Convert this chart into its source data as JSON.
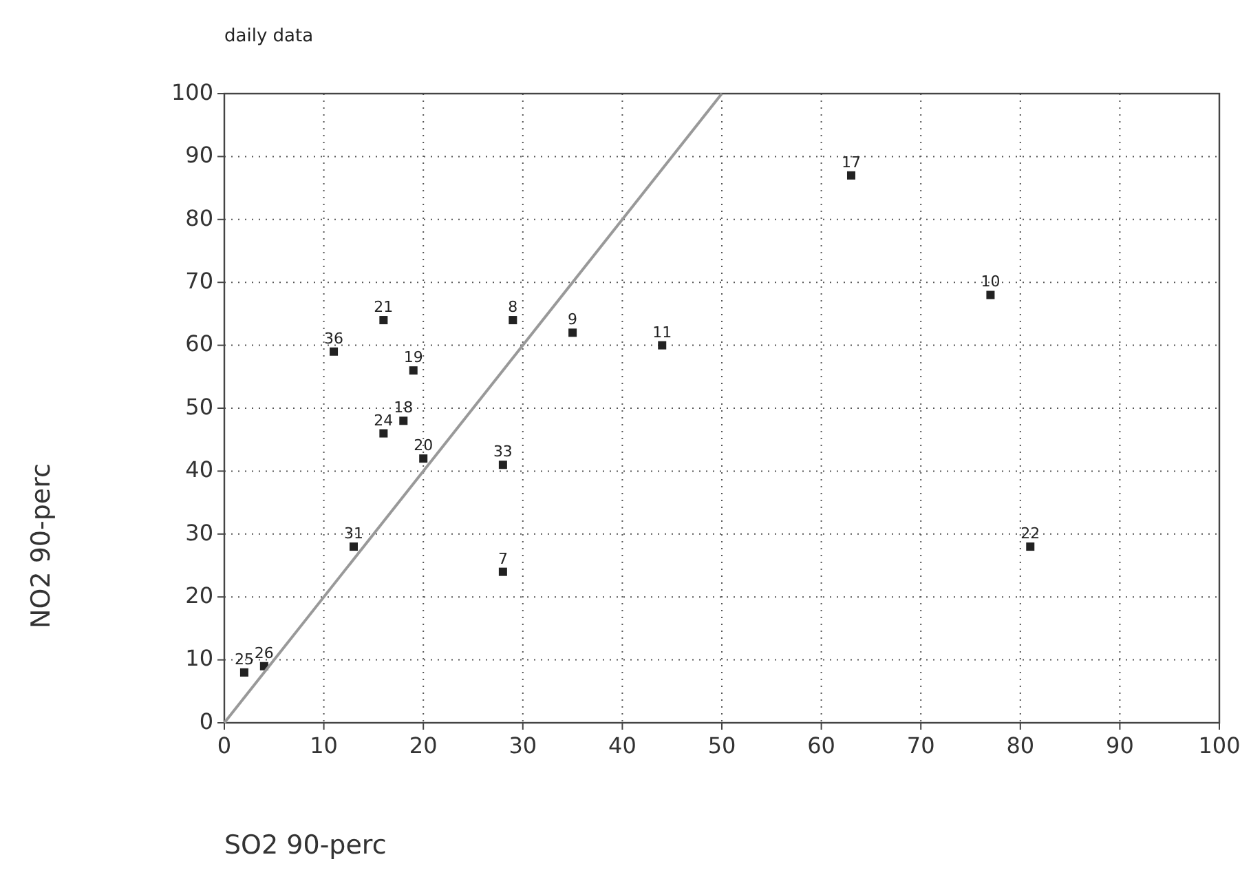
{
  "chart_data": {
    "type": "scatter",
    "title": "daily data",
    "xlabel": "SO2 90-perc",
    "ylabel": "NO2 90-perc",
    "xlim": [
      0,
      100
    ],
    "ylim": [
      0,
      100
    ],
    "xticks": [
      0,
      10,
      20,
      30,
      40,
      50,
      60,
      70,
      80,
      90,
      100
    ],
    "yticks": [
      0,
      10,
      20,
      30,
      40,
      50,
      60,
      70,
      80,
      90,
      100
    ],
    "grid": true,
    "marker": "square",
    "series": [
      {
        "type": "scatter",
        "color": "#222222",
        "x": [
          2,
          4,
          13,
          11,
          16,
          19,
          16,
          18,
          20,
          28,
          28,
          29,
          35,
          44,
          63,
          77,
          81
        ],
        "values": [
          8,
          9,
          28,
          59,
          64,
          56,
          46,
          48,
          42,
          41,
          24,
          64,
          62,
          60,
          87,
          68,
          28
        ]
      },
      {
        "type": "line",
        "color": "#999999",
        "marker": "none",
        "x": [
          0,
          50
        ],
        "values": [
          0,
          100
        ]
      }
    ],
    "annotations": [
      {
        "text": "25",
        "x": 2,
        "y": 8
      },
      {
        "text": "26",
        "x": 4,
        "y": 9
      },
      {
        "text": "31",
        "x": 13,
        "y": 28
      },
      {
        "text": "36",
        "x": 11,
        "y": 59
      },
      {
        "text": "21",
        "x": 16,
        "y": 64
      },
      {
        "text": "19",
        "x": 19,
        "y": 56
      },
      {
        "text": "24",
        "x": 16,
        "y": 46
      },
      {
        "text": "18",
        "x": 18,
        "y": 48
      },
      {
        "text": "20",
        "x": 20,
        "y": 42
      },
      {
        "text": "33",
        "x": 28,
        "y": 41
      },
      {
        "text": "7",
        "x": 28,
        "y": 24
      },
      {
        "text": "8",
        "x": 29,
        "y": 64
      },
      {
        "text": "9",
        "x": 35,
        "y": 62
      },
      {
        "text": "11",
        "x": 44,
        "y": 60
      },
      {
        "text": "17",
        "x": 63,
        "y": 87
      },
      {
        "text": "10",
        "x": 77,
        "y": 68
      },
      {
        "text": "22",
        "x": 81,
        "y": 28
      }
    ]
  }
}
